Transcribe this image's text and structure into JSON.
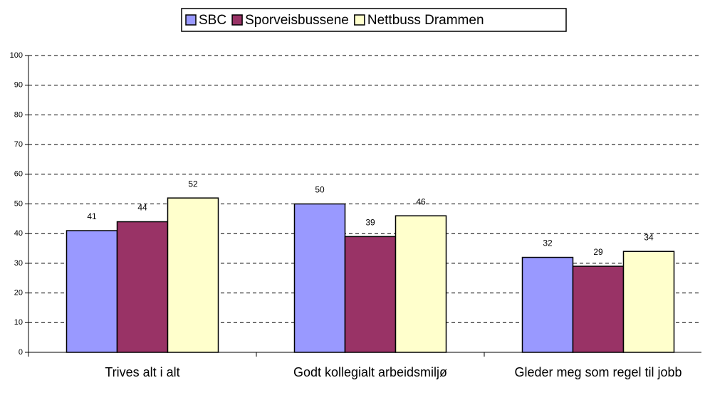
{
  "chart_data": {
    "type": "bar",
    "categories": [
      "Trives alt i alt",
      "Godt kollegialt arbeidsmiljø",
      "Gleder meg som regel til jobb"
    ],
    "series": [
      {
        "name": "SBC",
        "color": "#9999ff",
        "values": [
          41,
          50,
          32
        ]
      },
      {
        "name": "Sporveisbussene",
        "color": "#993366",
        "values": [
          44,
          39,
          29
        ]
      },
      {
        "name": "Nettbuss Drammen",
        "color": "#ffffcc",
        "values": [
          52,
          46,
          34
        ]
      }
    ],
    "ylim": [
      0,
      100
    ],
    "yticks": [
      0,
      10,
      20,
      30,
      40,
      50,
      60,
      70,
      80,
      90,
      100
    ],
    "grid": true,
    "legend": "top"
  }
}
